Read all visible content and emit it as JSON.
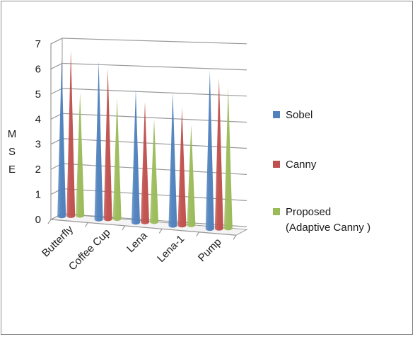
{
  "chart_data": {
    "type": "bar",
    "style": "3d-cone",
    "categories": [
      "Butterfly",
      "Coffee Cup",
      "Lena",
      "Lena-1",
      "Pump"
    ],
    "series": [
      {
        "name": "Sobel",
        "values": [
          6.3,
          6.3,
          5.3,
          5.3,
          6.3
        ],
        "color": "#4f81bd"
      },
      {
        "name": "Canny",
        "values": [
          6.6,
          6.0,
          4.8,
          4.7,
          6.0
        ],
        "color": "#c0504d"
      },
      {
        "name": "Proposed\n(Adaptive Canny )",
        "values": [
          4.9,
          4.8,
          4.1,
          4.0,
          5.6
        ],
        "color": "#9bbb59"
      }
    ],
    "ylabel": "MSE",
    "ylabel_letters": [
      "M",
      "S",
      "E"
    ],
    "xlabel": "",
    "ylim": [
      0,
      7
    ],
    "yticks": [
      "0",
      "1",
      "2",
      "3",
      "4",
      "5",
      "6",
      "7"
    ],
    "grid": true,
    "legend_position": "right"
  }
}
